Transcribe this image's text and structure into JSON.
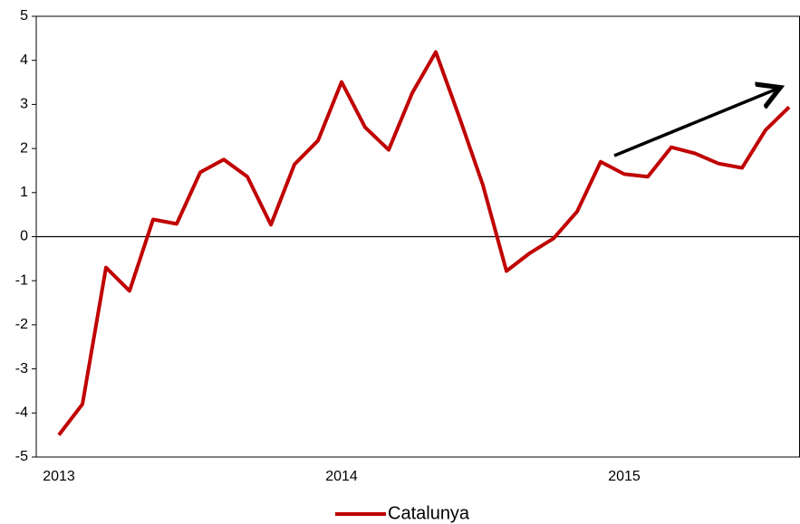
{
  "chart_data": {
    "type": "line",
    "categories": [
      "2013",
      null,
      null,
      null,
      null,
      null,
      null,
      null,
      null,
      null,
      null,
      null,
      "2014",
      null,
      null,
      null,
      null,
      null,
      null,
      null,
      null,
      null,
      null,
      null,
      "2015",
      null,
      null,
      null,
      null,
      null,
      null,
      null
    ],
    "series": [
      {
        "name": "Catalunya",
        "color": "#c00000",
        "values": [
          -4.5,
          -3.8,
          -0.7,
          -1.23,
          0.39,
          0.29,
          1.46,
          1.75,
          1.36,
          0.27,
          1.64,
          2.18,
          3.51,
          2.48,
          1.97,
          3.26,
          4.19,
          2.71,
          1.17,
          -0.78,
          -0.37,
          -0.04,
          0.57,
          1.7,
          1.42,
          1.36,
          2.03,
          1.89,
          1.66,
          1.56,
          2.42,
          2.94
        ]
      }
    ],
    "ylim": [
      -5,
      5
    ],
    "yticks": [
      -5,
      -4,
      -3,
      -2,
      -1,
      0,
      1,
      2,
      3,
      4,
      5
    ],
    "legend": "bottom"
  }
}
